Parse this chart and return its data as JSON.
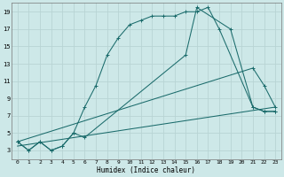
{
  "xlabel": "Humidex (Indice chaleur)",
  "bg_color": "#cde8e8",
  "grid_color": "#b8d4d4",
  "line_color": "#1a6b6b",
  "xlim": [
    -0.5,
    23.5
  ],
  "ylim": [
    2,
    20
  ],
  "xticks": [
    0,
    1,
    2,
    3,
    4,
    5,
    6,
    7,
    8,
    9,
    10,
    11,
    12,
    13,
    14,
    15,
    16,
    17,
    18,
    19,
    20,
    21,
    22,
    23
  ],
  "yticks": [
    3,
    5,
    7,
    9,
    11,
    13,
    15,
    17,
    19
  ],
  "line1_x": [
    0,
    1,
    2,
    3,
    4,
    5,
    6,
    7,
    8,
    9,
    10,
    11,
    12,
    13,
    14,
    15,
    16,
    17,
    18,
    21,
    22,
    23
  ],
  "line1_y": [
    4,
    3,
    4,
    3,
    3.5,
    5,
    8,
    10.5,
    14,
    16,
    17.5,
    18,
    18.5,
    18.5,
    18.5,
    19,
    19,
    19.5,
    17,
    8,
    7.5,
    7.5
  ],
  "line2_x": [
    0,
    1,
    2,
    3,
    4,
    5,
    6,
    15,
    16,
    19,
    21,
    22,
    23
  ],
  "line2_y": [
    4,
    3,
    4,
    3,
    3.5,
    5,
    4.5,
    14,
    19.5,
    17,
    8,
    7.5,
    7.5
  ],
  "line3_x": [
    0,
    21,
    22,
    23
  ],
  "line3_y": [
    4,
    12.5,
    10.5,
    8
  ],
  "line4_x": [
    0,
    23
  ],
  "line4_y": [
    3.5,
    8
  ]
}
